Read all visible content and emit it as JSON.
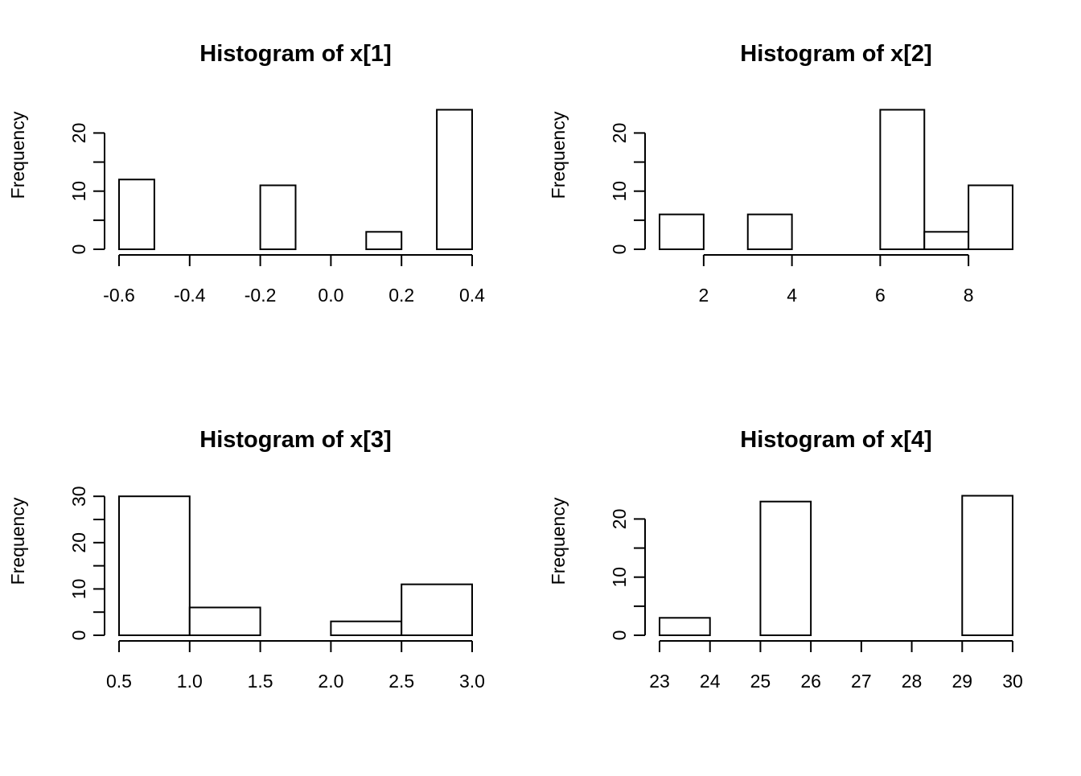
{
  "chart_data": [
    {
      "type": "bar",
      "title": "Histogram of x[1]",
      "xlabel": "",
      "ylabel": "Frequency",
      "xlim": [
        -0.6,
        0.4
      ],
      "ylim": [
        0,
        24
      ],
      "bins": [
        {
          "x0": -0.6,
          "x1": -0.5,
          "count": 12
        },
        {
          "x0": -0.5,
          "x1": -0.4,
          "count": 0
        },
        {
          "x0": -0.4,
          "x1": -0.3,
          "count": 0
        },
        {
          "x0": -0.3,
          "x1": -0.2,
          "count": 0
        },
        {
          "x0": -0.2,
          "x1": -0.1,
          "count": 11
        },
        {
          "x0": -0.1,
          "x1": 0.0,
          "count": 0
        },
        {
          "x0": 0.0,
          "x1": 0.1,
          "count": 0
        },
        {
          "x0": 0.1,
          "x1": 0.2,
          "count": 3
        },
        {
          "x0": 0.2,
          "x1": 0.3,
          "count": 0
        },
        {
          "x0": 0.3,
          "x1": 0.4,
          "count": 24
        }
      ],
      "x_ticks": [
        -0.6,
        -0.4,
        -0.2,
        0.0,
        0.2,
        0.4
      ],
      "x_tick_labels": [
        "-0.6",
        "-0.4",
        "-0.2",
        "0.0",
        "0.2",
        "0.4"
      ],
      "y_ticks": [
        0,
        5,
        10,
        15,
        20
      ],
      "y_tick_labels": [
        "0",
        "",
        "10",
        "",
        "20"
      ]
    },
    {
      "type": "bar",
      "title": "Histogram of x[2]",
      "xlabel": "",
      "ylabel": "Frequency",
      "xlim": [
        1,
        9
      ],
      "ylim": [
        0,
        24
      ],
      "bins": [
        {
          "x0": 1,
          "x1": 2,
          "count": 6
        },
        {
          "x0": 2,
          "x1": 3,
          "count": 0
        },
        {
          "x0": 3,
          "x1": 4,
          "count": 6
        },
        {
          "x0": 4,
          "x1": 5,
          "count": 0
        },
        {
          "x0": 5,
          "x1": 6,
          "count": 0
        },
        {
          "x0": 6,
          "x1": 7,
          "count": 24
        },
        {
          "x0": 7,
          "x1": 8,
          "count": 3
        },
        {
          "x0": 8,
          "x1": 9,
          "count": 11
        }
      ],
      "x_ticks": [
        2,
        4,
        6,
        8
      ],
      "x_tick_labels": [
        "2",
        "4",
        "6",
        "8"
      ],
      "y_ticks": [
        0,
        5,
        10,
        15,
        20
      ],
      "y_tick_labels": [
        "0",
        "",
        "10",
        "",
        "20"
      ]
    },
    {
      "type": "bar",
      "title": "Histogram of x[3]",
      "xlabel": "",
      "ylabel": "Frequency",
      "xlim": [
        0.5,
        3.0
      ],
      "ylim": [
        0,
        30
      ],
      "bins": [
        {
          "x0": 0.5,
          "x1": 1.0,
          "count": 30
        },
        {
          "x0": 1.0,
          "x1": 1.5,
          "count": 6
        },
        {
          "x0": 1.5,
          "x1": 2.0,
          "count": 0
        },
        {
          "x0": 2.0,
          "x1": 2.5,
          "count": 3
        },
        {
          "x0": 2.5,
          "x1": 3.0,
          "count": 11
        }
      ],
      "x_ticks": [
        0.5,
        1.0,
        1.5,
        2.0,
        2.5,
        3.0
      ],
      "x_tick_labels": [
        "0.5",
        "1.0",
        "1.5",
        "2.0",
        "2.5",
        "3.0"
      ],
      "y_ticks": [
        0,
        5,
        10,
        15,
        20,
        25,
        30
      ],
      "y_tick_labels": [
        "0",
        "",
        "10",
        "",
        "20",
        "",
        "30"
      ]
    },
    {
      "type": "bar",
      "title": "Histogram of x[4]",
      "xlabel": "",
      "ylabel": "Frequency",
      "xlim": [
        23,
        30
      ],
      "ylim": [
        0,
        24
      ],
      "bins": [
        {
          "x0": 23,
          "x1": 24,
          "count": 3
        },
        {
          "x0": 24,
          "x1": 25,
          "count": 0
        },
        {
          "x0": 25,
          "x1": 26,
          "count": 23
        },
        {
          "x0": 26,
          "x1": 27,
          "count": 0
        },
        {
          "x0": 27,
          "x1": 28,
          "count": 0
        },
        {
          "x0": 28,
          "x1": 29,
          "count": 0
        },
        {
          "x0": 29,
          "x1": 30,
          "count": 24
        }
      ],
      "x_ticks": [
        23,
        24,
        25,
        26,
        27,
        28,
        29,
        30
      ],
      "x_tick_labels": [
        "23",
        "24",
        "25",
        "26",
        "27",
        "28",
        "29",
        "30"
      ],
      "y_ticks": [
        0,
        5,
        10,
        15,
        20
      ],
      "y_tick_labels": [
        "0",
        "",
        "10",
        "",
        "20"
      ]
    }
  ]
}
